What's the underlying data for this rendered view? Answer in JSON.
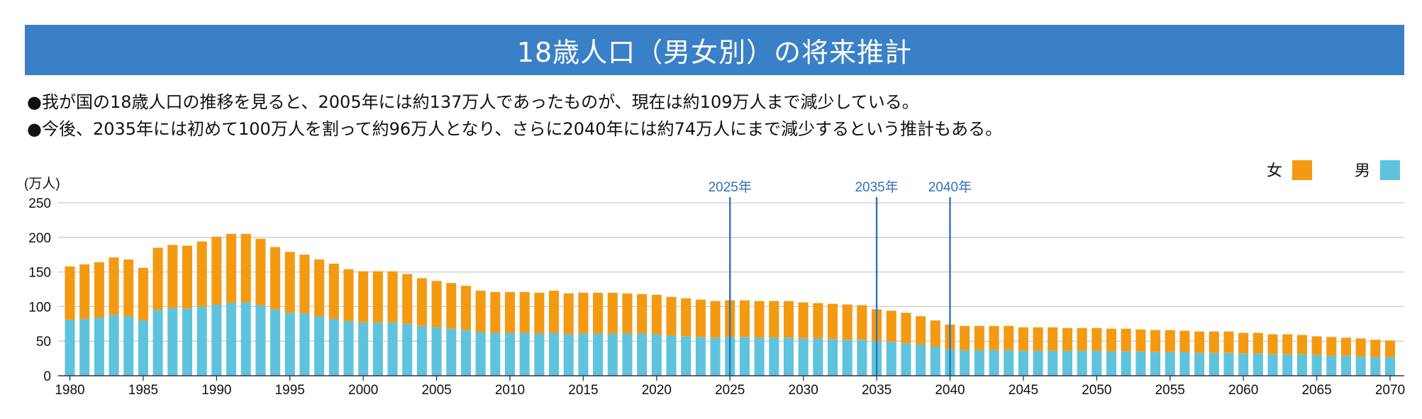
{
  "title": "18歳人口（男女別）の将来推計",
  "notes": [
    "●我が国の18歳人口の推移を見ると、2005年には約137万人であったものが、現在は約109万人まで減少している。",
    "●今後、2035年には初めて100万人を割って約96万人となり、さらに2040年には約74万人にまで減少するという推計もある。"
  ],
  "chart_data": {
    "type": "bar",
    "stacked": true,
    "unit_label": "(万人)",
    "ylim": [
      0,
      250
    ],
    "y_ticks": [
      0,
      50,
      100,
      150,
      200,
      250
    ],
    "x_tick_labels": [
      "1980",
      "1985",
      "1990",
      "1995",
      "2000",
      "2005",
      "2010",
      "2015",
      "2020",
      "2025",
      "2030",
      "2035",
      "2040",
      "2045",
      "2050",
      "2055",
      "2060",
      "2065",
      "2070"
    ],
    "grid": true,
    "legend_position": "top-right",
    "colors": {
      "female": "#f39a12",
      "male": "#5fc3dd",
      "marker": "#2f72b8",
      "grid": "#c9ccd0",
      "title_bar": "#3a80c6"
    },
    "years": [
      1980,
      1981,
      1982,
      1983,
      1984,
      1985,
      1986,
      1987,
      1988,
      1989,
      1990,
      1991,
      1992,
      1993,
      1994,
      1995,
      1996,
      1997,
      1998,
      1999,
      2000,
      2001,
      2002,
      2003,
      2004,
      2005,
      2006,
      2007,
      2008,
      2009,
      2010,
      2011,
      2012,
      2013,
      2014,
      2015,
      2016,
      2017,
      2018,
      2019,
      2020,
      2021,
      2022,
      2023,
      2024,
      2025,
      2026,
      2027,
      2028,
      2029,
      2030,
      2031,
      2032,
      2033,
      2034,
      2035,
      2036,
      2037,
      2038,
      2039,
      2040,
      2041,
      2042,
      2043,
      2044,
      2045,
      2046,
      2047,
      2048,
      2049,
      2050,
      2051,
      2052,
      2053,
      2054,
      2055,
      2056,
      2057,
      2058,
      2059,
      2060,
      2061,
      2062,
      2063,
      2064,
      2065,
      2066,
      2067,
      2068,
      2069,
      2070
    ],
    "series": [
      {
        "name": "男",
        "values": [
          81,
          82,
          84,
          88,
          86,
          80,
          95,
          98,
          97,
          100,
          103,
          105,
          106,
          102,
          96,
          91,
          90,
          86,
          82,
          79,
          77,
          77,
          77,
          75,
          72,
          70,
          68,
          66,
          63,
          62,
          62,
          62,
          61,
          62,
          60,
          61,
          61,
          61,
          61,
          61,
          60,
          58,
          57,
          56,
          55,
          56,
          56,
          55,
          55,
          55,
          54,
          54,
          53,
          52,
          52,
          50,
          49,
          47,
          45,
          42,
          38,
          37,
          37,
          37,
          37,
          36,
          36,
          36,
          36,
          36,
          36,
          35,
          35,
          35,
          34,
          34,
          34,
          33,
          33,
          33,
          32,
          32,
          31,
          31,
          31,
          30,
          29,
          29,
          28,
          27,
          27
        ]
      },
      {
        "name": "女",
        "values": [
          77,
          79,
          80,
          83,
          82,
          76,
          90,
          91,
          91,
          94,
          98,
          100,
          99,
          96,
          90,
          88,
          85,
          82,
          80,
          75,
          74,
          74,
          74,
          72,
          69,
          67,
          66,
          64,
          60,
          59,
          59,
          59,
          59,
          61,
          59,
          59,
          59,
          59,
          58,
          57,
          57,
          56,
          55,
          54,
          53,
          53,
          53,
          53,
          53,
          53,
          52,
          51,
          51,
          51,
          50,
          46,
          45,
          44,
          41,
          38,
          36,
          35,
          35,
          35,
          35,
          34,
          34,
          34,
          33,
          33,
          33,
          33,
          33,
          32,
          32,
          32,
          31,
          31,
          31,
          31,
          30,
          30,
          29,
          29,
          28,
          27,
          27,
          26,
          26,
          25,
          24
        ]
      }
    ],
    "markers": [
      {
        "year": 2025,
        "label": "2025年"
      },
      {
        "year": 2035,
        "label": "2035年"
      },
      {
        "year": 2040,
        "label": "2040年"
      }
    ],
    "legend": [
      {
        "label": "女",
        "color": "#f39a12"
      },
      {
        "label": "男",
        "color": "#5fc3dd"
      }
    ]
  }
}
